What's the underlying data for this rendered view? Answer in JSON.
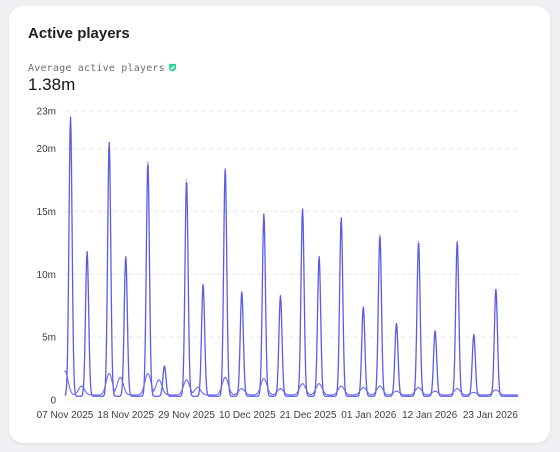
{
  "card": {
    "title": "Active players",
    "metric_label": "Average active players",
    "metric_value": "1.38m",
    "badge_icon": "verified-shield-icon"
  },
  "colors": {
    "series_primary": "#5b5ce6",
    "series_secondary": "#6a6cf0",
    "badge": "#2fd39b",
    "grid": "#e3e5ea"
  },
  "chart_data": {
    "type": "line",
    "title": "",
    "xlabel": "",
    "ylabel": "",
    "y_ticks": [
      {
        "value": 0,
        "label": "0"
      },
      {
        "value": 5,
        "label": "5m"
      },
      {
        "value": 10,
        "label": "10m"
      },
      {
        "value": 15,
        "label": "15m"
      },
      {
        "value": 20,
        "label": "20m"
      },
      {
        "value": 23,
        "label": "23m"
      }
    ],
    "x_ticks": [
      "07 Nov 2025",
      "18 Nov 2025",
      "29 Nov 2025",
      "10 Dec 2025",
      "21 Dec 2025",
      "01 Jan 2026",
      "12 Jan 2026",
      "23 Jan 2026"
    ],
    "ylim": [
      0,
      23
    ],
    "grid": true,
    "series": [
      {
        "peaks": [
          {
            "date": "2025-11-08",
            "value": 22.5
          },
          {
            "date": "2025-11-11",
            "value": 11.8
          },
          {
            "date": "2025-11-15",
            "value": 20.5
          },
          {
            "date": "2025-11-18",
            "value": 11.4
          },
          {
            "date": "2025-11-22",
            "value": 18.9
          },
          {
            "date": "2025-11-25",
            "value": 2.7
          },
          {
            "date": "2025-11-29",
            "value": 17.5
          },
          {
            "date": "2025-12-02",
            "value": 9.2
          },
          {
            "date": "2025-12-06",
            "value": 18.4
          },
          {
            "date": "2025-12-09",
            "value": 8.6
          },
          {
            "date": "2025-12-13",
            "value": 14.8
          },
          {
            "date": "2025-12-16",
            "value": 8.3
          },
          {
            "date": "2025-12-20",
            "value": 15.2
          },
          {
            "date": "2025-12-23",
            "value": 11.4
          },
          {
            "date": "2025-12-27",
            "value": 14.5
          },
          {
            "date": "2025-12-31",
            "value": 7.4
          },
          {
            "date": "2026-01-03",
            "value": 13.1
          },
          {
            "date": "2026-01-06",
            "value": 6.1
          },
          {
            "date": "2026-01-10",
            "value": 12.6
          },
          {
            "date": "2026-01-13",
            "value": 5.5
          },
          {
            "date": "2026-01-17",
            "value": 12.6
          },
          {
            "date": "2026-01-20",
            "value": 5.2
          },
          {
            "date": "2026-01-24",
            "value": 8.8
          }
        ],
        "baseline": 0.3
      },
      {
        "peaks": [
          {
            "date": "2025-11-07",
            "value": 2.3
          },
          {
            "date": "2025-11-10",
            "value": 1.1
          },
          {
            "date": "2025-11-15",
            "value": 2.1
          },
          {
            "date": "2025-11-17",
            "value": 1.8
          },
          {
            "date": "2025-11-22",
            "value": 2.1
          },
          {
            "date": "2025-11-24",
            "value": 1.6
          },
          {
            "date": "2025-11-29",
            "value": 1.6
          },
          {
            "date": "2025-12-01",
            "value": 1.0
          },
          {
            "date": "2025-12-06",
            "value": 1.8
          },
          {
            "date": "2025-12-09",
            "value": 0.9
          },
          {
            "date": "2025-12-13",
            "value": 1.7
          },
          {
            "date": "2025-12-16",
            "value": 0.9
          },
          {
            "date": "2025-12-20",
            "value": 1.3
          },
          {
            "date": "2025-12-23",
            "value": 1.3
          },
          {
            "date": "2025-12-27",
            "value": 1.1
          },
          {
            "date": "2025-12-31",
            "value": 1.0
          },
          {
            "date": "2026-01-03",
            "value": 1.1
          },
          {
            "date": "2026-01-06",
            "value": 0.7
          },
          {
            "date": "2026-01-10",
            "value": 1.0
          },
          {
            "date": "2026-01-13",
            "value": 0.7
          },
          {
            "date": "2026-01-17",
            "value": 0.9
          },
          {
            "date": "2026-01-20",
            "value": 0.6
          },
          {
            "date": "2026-01-24",
            "value": 0.8
          }
        ],
        "baseline": 0.4
      }
    ]
  }
}
